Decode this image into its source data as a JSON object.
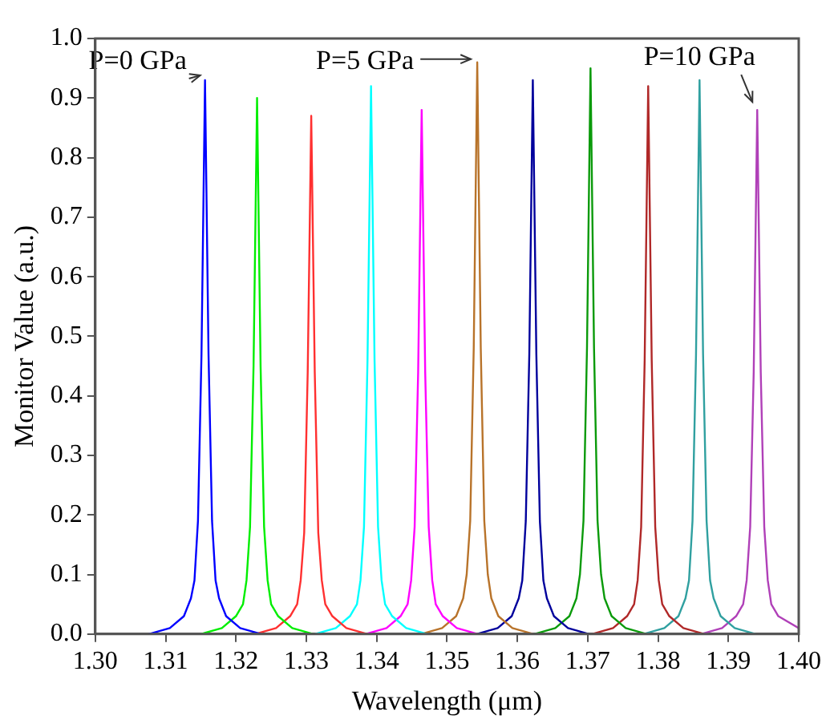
{
  "chart_data": {
    "type": "line",
    "xlabel": "Wavelength (μm)",
    "ylabel": "Monitor Value (a.u.)",
    "xlim": [
      1.3,
      1.4
    ],
    "ylim": [
      0,
      1
    ],
    "xticks": [
      {
        "value": 1.3,
        "label": "1.30"
      },
      {
        "value": 1.31,
        "label": "1.31"
      },
      {
        "value": 1.32,
        "label": "1.32"
      },
      {
        "value": 1.33,
        "label": "1.33"
      },
      {
        "value": 1.34,
        "label": "1.34"
      },
      {
        "value": 1.35,
        "label": "1.35"
      },
      {
        "value": 1.36,
        "label": "1.36"
      },
      {
        "value": 1.37,
        "label": "1.37"
      },
      {
        "value": 1.38,
        "label": "1.38"
      },
      {
        "value": 1.39,
        "label": "1.39"
      },
      {
        "value": 1.4,
        "label": "1.40"
      }
    ],
    "yticks": [
      {
        "value": 0,
        "label": "0.0"
      },
      {
        "value": 0.1,
        "label": "0.1"
      },
      {
        "value": 0.2,
        "label": "0.2"
      },
      {
        "value": 0.3,
        "label": "0.3"
      },
      {
        "value": 0.4,
        "label": "0.4"
      },
      {
        "value": 0.5,
        "label": "0.5"
      },
      {
        "value": 0.6,
        "label": "0.6"
      },
      {
        "value": 0.7,
        "label": "0.7"
      },
      {
        "value": 0.8,
        "label": "0.8"
      },
      {
        "value": 0.9,
        "label": "0.9"
      },
      {
        "value": 1,
        "label": "1.0"
      }
    ],
    "marker": "none",
    "line_style": "solid",
    "annotations": [
      {
        "text": "P=0 GPa",
        "x": 1.3156,
        "y": 0.93
      },
      {
        "text": "P=5 GPa",
        "x": 1.3543,
        "y": 0.96
      },
      {
        "text": "P=10 GPa",
        "x": 1.3941,
        "y": 0.88
      }
    ],
    "series": [
      {
        "color": "#0000ff",
        "x": [
          1.3076,
          1.3106,
          1.3126,
          1.3136,
          1.3141,
          1.3146,
          1.3151,
          1.3156,
          1.3161,
          1.3166,
          1.3171,
          1.3176,
          1.3186,
          1.3206,
          1.3236
        ],
        "values": [
          0,
          0.01,
          0.03,
          0.06,
          0.09,
          0.19,
          0.47,
          0.93,
          0.47,
          0.19,
          0.09,
          0.06,
          0.03,
          0.01,
          0
        ]
      },
      {
        "color": "#00ee00",
        "x": [
          1.315,
          1.318,
          1.32,
          1.321,
          1.3215,
          1.322,
          1.3225,
          1.323,
          1.3235,
          1.324,
          1.3245,
          1.325,
          1.326,
          1.328,
          1.331
        ],
        "values": [
          0,
          0.01,
          0.03,
          0.05,
          0.09,
          0.18,
          0.45,
          0.9,
          0.45,
          0.18,
          0.09,
          0.05,
          0.03,
          0.01,
          0
        ]
      },
      {
        "color": "#ff3030",
        "x": [
          1.3227,
          1.3257,
          1.3277,
          1.3287,
          1.3292,
          1.3297,
          1.3302,
          1.3307,
          1.3312,
          1.3317,
          1.3322,
          1.3327,
          1.3337,
          1.3357,
          1.3387
        ],
        "values": [
          0,
          0.01,
          0.03,
          0.05,
          0.09,
          0.17,
          0.44,
          0.87,
          0.44,
          0.17,
          0.09,
          0.05,
          0.03,
          0.01,
          0
        ]
      },
      {
        "color": "#00ffff",
        "x": [
          1.3312,
          1.3342,
          1.3362,
          1.3372,
          1.3377,
          1.3382,
          1.3387,
          1.3392,
          1.3397,
          1.3402,
          1.3407,
          1.3412,
          1.3422,
          1.3442,
          1.3472
        ],
        "values": [
          0,
          0.01,
          0.03,
          0.05,
          0.09,
          0.18,
          0.46,
          0.92,
          0.46,
          0.18,
          0.09,
          0.05,
          0.03,
          0.01,
          0
        ]
      },
      {
        "color": "#ff00ff",
        "x": [
          1.3384,
          1.3414,
          1.3434,
          1.3444,
          1.3449,
          1.3454,
          1.3459,
          1.3464,
          1.3469,
          1.3474,
          1.3479,
          1.3484,
          1.3494,
          1.3514,
          1.3544
        ],
        "values": [
          0,
          0.01,
          0.03,
          0.05,
          0.09,
          0.18,
          0.44,
          0.88,
          0.44,
          0.18,
          0.09,
          0.05,
          0.03,
          0.01,
          0
        ]
      },
      {
        "color": "#b8732a",
        "x": [
          1.3463,
          1.3493,
          1.3513,
          1.3523,
          1.3528,
          1.3533,
          1.3538,
          1.3543,
          1.3548,
          1.3553,
          1.3558,
          1.3563,
          1.3573,
          1.3593,
          1.3623
        ],
        "values": [
          0,
          0.01,
          0.03,
          0.06,
          0.1,
          0.19,
          0.48,
          0.96,
          0.48,
          0.19,
          0.1,
          0.06,
          0.03,
          0.01,
          0
        ]
      },
      {
        "color": "#00009c",
        "x": [
          1.3542,
          1.3572,
          1.3592,
          1.3602,
          1.3607,
          1.3612,
          1.3617,
          1.3622,
          1.3627,
          1.3632,
          1.3637,
          1.3642,
          1.3652,
          1.3672,
          1.3702
        ],
        "values": [
          0,
          0.01,
          0.03,
          0.06,
          0.09,
          0.19,
          0.47,
          0.93,
          0.47,
          0.19,
          0.09,
          0.06,
          0.03,
          0.01,
          0
        ]
      },
      {
        "color": "#0a9a0a",
        "x": [
          1.3624,
          1.3654,
          1.3674,
          1.3684,
          1.3689,
          1.3694,
          1.3699,
          1.3704,
          1.3709,
          1.3714,
          1.3719,
          1.3724,
          1.3734,
          1.3754,
          1.3784
        ],
        "values": [
          0,
          0.01,
          0.03,
          0.06,
          0.1,
          0.19,
          0.48,
          0.95,
          0.48,
          0.19,
          0.1,
          0.06,
          0.03,
          0.01,
          0
        ]
      },
      {
        "color": "#b02828",
        "x": [
          1.3706,
          1.3736,
          1.3756,
          1.3766,
          1.3771,
          1.3776,
          1.3781,
          1.3786,
          1.3791,
          1.3796,
          1.3801,
          1.3806,
          1.3816,
          1.3836,
          1.3866
        ],
        "values": [
          0,
          0.01,
          0.03,
          0.05,
          0.09,
          0.18,
          0.46,
          0.92,
          0.46,
          0.18,
          0.09,
          0.05,
          0.03,
          0.01,
          0
        ]
      },
      {
        "color": "#30a0a0",
        "x": [
          1.3779,
          1.3809,
          1.3829,
          1.3839,
          1.3844,
          1.3849,
          1.3854,
          1.3859,
          1.3864,
          1.3869,
          1.3874,
          1.3879,
          1.3889,
          1.3909,
          1.3939
        ],
        "values": [
          0,
          0.01,
          0.03,
          0.06,
          0.09,
          0.19,
          0.47,
          0.93,
          0.47,
          0.19,
          0.09,
          0.06,
          0.03,
          0.01,
          0
        ]
      },
      {
        "color": "#b040b8",
        "x": [
          1.3861,
          1.3891,
          1.3911,
          1.3921,
          1.3926,
          1.3931,
          1.3936,
          1.3941,
          1.3946,
          1.3951,
          1.3956,
          1.3961,
          1.3971,
          1.4
        ],
        "values": [
          0,
          0.01,
          0.03,
          0.05,
          0.09,
          0.18,
          0.44,
          0.88,
          0.44,
          0.18,
          0.09,
          0.05,
          0.03,
          0.01
        ]
      }
    ]
  }
}
